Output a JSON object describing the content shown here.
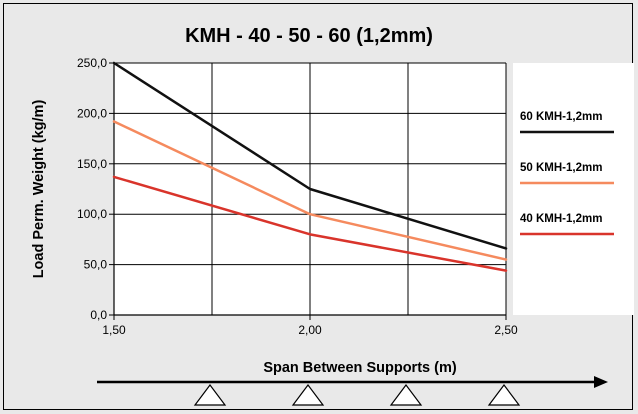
{
  "chart_data": {
    "type": "line",
    "title": "KMH  - 40 - 50 - 60 (1,2mm)",
    "xlabel": "Span Between Supports (m)",
    "ylabel": "Load Perm. Weight (kg/m)",
    "xlim": [
      1.5,
      2.5
    ],
    "ylim": [
      0,
      250
    ],
    "x_ticks": [
      "1,50",
      "2,00",
      "2,50"
    ],
    "y_ticks": [
      "0,0",
      "50,0",
      "100,0",
      "150,0",
      "200,0",
      "250,0"
    ],
    "grid": true,
    "legend_position": "right",
    "series": [
      {
        "name": "60 KMH-1,2mm",
        "color": "#111111",
        "x": [
          1.5,
          2.0,
          2.5
        ],
        "y": [
          250,
          125,
          66
        ]
      },
      {
        "name": "50 KMH-1,2mm",
        "color": "#f58a5e",
        "x": [
          1.5,
          2.0,
          2.5
        ],
        "y": [
          192,
          100,
          55
        ]
      },
      {
        "name": "40 KMH-1,2mm",
        "color": "#d9342b",
        "x": [
          1.5,
          2.0,
          2.5
        ],
        "y": [
          137,
          80,
          44
        ]
      }
    ]
  }
}
